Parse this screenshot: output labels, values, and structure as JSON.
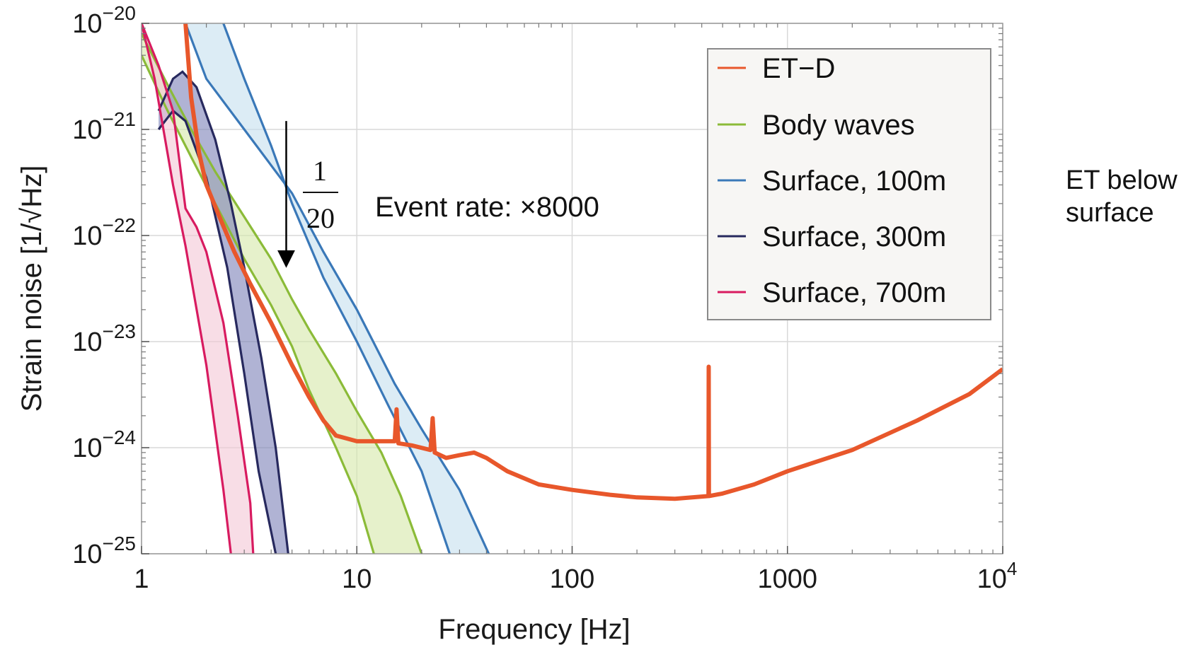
{
  "chart_data": {
    "type": "line",
    "title": "",
    "xlabel": "Frequency [Hz]",
    "ylabel": "Strain noise [1/√Hz]",
    "xscale": "log",
    "yscale": "log",
    "xlim": [
      1,
      10000
    ],
    "ylim": [
      1e-25,
      1e-20
    ],
    "grid": true,
    "legend_position": "top-right",
    "x_ticks": [
      {
        "value": 1,
        "label": "1"
      },
      {
        "value": 10,
        "label": "10"
      },
      {
        "value": 100,
        "label": "100"
      },
      {
        "value": 1000,
        "label": "1000"
      },
      {
        "value": 10000,
        "label": "10",
        "exp": "4"
      }
    ],
    "y_ticks": [
      {
        "value": 1e-20,
        "exp": "−20"
      },
      {
        "value": 1e-21,
        "exp": "−21"
      },
      {
        "value": 1e-22,
        "exp": "−22"
      },
      {
        "value": 1e-23,
        "exp": "−23"
      },
      {
        "value": 1e-24,
        "exp": "−24"
      },
      {
        "value": 1e-25,
        "exp": "−25"
      }
    ],
    "series": [
      {
        "name": "ET−D",
        "kind": "line",
        "color": "#e8572b",
        "points": [
          [
            1.6,
            1e-20
          ],
          [
            1.7,
            2e-21
          ],
          [
            1.85,
            6e-22
          ],
          [
            2.0,
            3e-22
          ],
          [
            2.3,
            1.5e-22
          ],
          [
            2.7,
            7e-23
          ],
          [
            3.2,
            3.5e-23
          ],
          [
            4,
            1.5e-23
          ],
          [
            5,
            6e-24
          ],
          [
            6,
            3e-24
          ],
          [
            7,
            1.8e-24
          ],
          [
            8,
            1.3e-24
          ],
          [
            10,
            1.15e-24
          ],
          [
            13,
            1.15e-24
          ],
          [
            15,
            1.15e-24
          ],
          [
            15.3,
            2.3e-24
          ],
          [
            15.6,
            1.1e-24
          ],
          [
            18,
            1.05e-24
          ],
          [
            22,
            9.5e-25
          ],
          [
            22.5,
            1.9e-24
          ],
          [
            23,
            9e-25
          ],
          [
            26,
            8e-25
          ],
          [
            30,
            8.5e-25
          ],
          [
            35,
            9e-25
          ],
          [
            40,
            8e-25
          ],
          [
            50,
            6e-25
          ],
          [
            70,
            4.5e-25
          ],
          [
            100,
            4e-25
          ],
          [
            150,
            3.6e-25
          ],
          [
            200,
            3.4e-25
          ],
          [
            300,
            3.3e-25
          ],
          [
            430,
            3.5e-25
          ],
          [
            431,
            5.8e-24
          ],
          [
            432,
            3.5e-25
          ],
          [
            500,
            3.7e-25
          ],
          [
            700,
            4.5e-25
          ],
          [
            1000,
            6e-25
          ],
          [
            2000,
            9.5e-25
          ],
          [
            4000,
            1.8e-24
          ],
          [
            7000,
            3.2e-24
          ],
          [
            10000,
            5.5e-24
          ]
        ]
      },
      {
        "name": "Body waves",
        "kind": "band",
        "color": "#8bbb38",
        "fill": "#d6e8a8",
        "upper": [
          [
            1,
            8e-21
          ],
          [
            1.3,
            2.8e-21
          ],
          [
            1.7,
            1e-21
          ],
          [
            2.2,
            4e-22
          ],
          [
            3,
            1.5e-22
          ],
          [
            4,
            6e-23
          ],
          [
            5,
            2.5e-23
          ],
          [
            6,
            1.3e-23
          ],
          [
            8,
            5e-24
          ],
          [
            10,
            2.2e-24
          ],
          [
            13,
            9e-25
          ],
          [
            16,
            3.5e-25
          ],
          [
            20,
            1e-25
          ]
        ],
        "lower": [
          [
            1,
            5e-21
          ],
          [
            1.3,
            1.6e-21
          ],
          [
            1.7,
            5.5e-22
          ],
          [
            2.2,
            2e-22
          ],
          [
            3,
            6e-23
          ],
          [
            4,
            2.2e-23
          ],
          [
            5,
            9e-24
          ],
          [
            6,
            3.5e-24
          ],
          [
            8,
            1e-24
          ],
          [
            10,
            3.5e-25
          ],
          [
            12,
            1e-25
          ]
        ]
      },
      {
        "name": "Surface, 100m",
        "kind": "band",
        "color": "#3a78b8",
        "fill": "#c5e0ee",
        "upper": [
          [
            1.6,
            1e-20
          ],
          [
            2,
            3e-21
          ],
          [
            3,
            1e-21
          ],
          [
            5,
            2.5e-22
          ],
          [
            7,
            7e-23
          ],
          [
            10,
            2e-23
          ],
          [
            15,
            4e-24
          ],
          [
            20,
            1.5e-24
          ],
          [
            30,
            4e-25
          ],
          [
            41,
            1e-25
          ]
        ],
        "lower": [
          [
            2.4,
            1e-20
          ],
          [
            3,
            3e-21
          ],
          [
            4,
            7e-22
          ],
          [
            5,
            2e-22
          ],
          [
            7,
            4e-23
          ],
          [
            10,
            1e-23
          ],
          [
            14,
            2.5e-24
          ],
          [
            20,
            6e-25
          ],
          [
            27,
            1e-25
          ]
        ]
      },
      {
        "name": "Surface, 300m",
        "kind": "band",
        "color": "#27295e",
        "fill": "#7c80b8",
        "upper": [
          [
            1.2,
            1.5e-21
          ],
          [
            1.4,
            3e-21
          ],
          [
            1.55,
            3.5e-21
          ],
          [
            1.8,
            2.5e-21
          ],
          [
            2.2,
            8e-22
          ],
          [
            2.6,
            2e-22
          ],
          [
            3,
            5e-23
          ],
          [
            3.6,
            7e-24
          ],
          [
            4.2,
            1e-24
          ],
          [
            4.8,
            1e-25
          ]
        ],
        "lower": [
          [
            1.2,
            1e-21
          ],
          [
            1.4,
            1.5e-21
          ],
          [
            1.6,
            1.2e-21
          ],
          [
            2,
            3.5e-22
          ],
          [
            2.5,
            5e-23
          ],
          [
            3,
            5e-24
          ],
          [
            3.5,
            6e-25
          ],
          [
            4.2,
            1e-25
          ]
        ]
      },
      {
        "name": "Surface, 700m",
        "kind": "band",
        "color": "#d81b60",
        "fill": "#f3c6d6",
        "upper": [
          [
            1,
            1e-20
          ],
          [
            1.2,
            4e-21
          ],
          [
            1.4,
            1.5e-21
          ],
          [
            1.6,
            1.8e-22
          ],
          [
            1.8,
            1.2e-22
          ],
          [
            2,
            7e-23
          ],
          [
            2.4,
            1.5e-23
          ],
          [
            2.8,
            2e-24
          ],
          [
            3.2,
            3e-25
          ],
          [
            3.3,
            1e-25
          ]
        ],
        "lower": [
          [
            1,
            1e-20
          ],
          [
            1.15,
            3e-21
          ],
          [
            1.4,
            3e-22
          ],
          [
            1.6,
            8e-23
          ],
          [
            2,
            6e-24
          ],
          [
            2.4,
            4e-25
          ],
          [
            2.6,
            1e-25
          ]
        ]
      }
    ],
    "annotations": {
      "fraction_numerator": "1",
      "fraction_denominator": "20",
      "event_rate": "Event rate: ×8000",
      "arrow": {
        "x": 4.7,
        "y_from": 1.2e-21,
        "y_to": 6e-23
      }
    }
  },
  "side_note": {
    "line1": "ET below",
    "line2": "surface"
  }
}
